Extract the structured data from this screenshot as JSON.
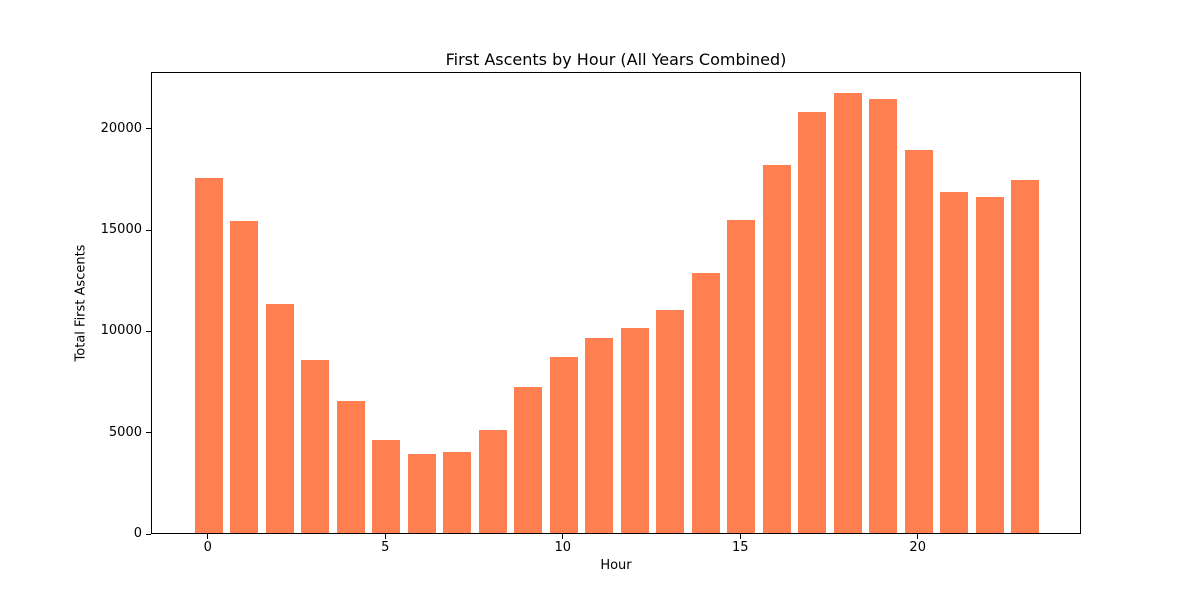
{
  "chart_data": {
    "type": "bar",
    "title": "First Ascents by Hour (All Years Combined)",
    "xlabel": "Hour",
    "ylabel": "Total First Ascents",
    "categories": [
      0,
      1,
      2,
      3,
      4,
      5,
      6,
      7,
      8,
      9,
      10,
      11,
      12,
      13,
      14,
      15,
      16,
      17,
      18,
      19,
      20,
      21,
      22,
      23
    ],
    "values": [
      17500,
      15400,
      11300,
      8550,
      6500,
      4600,
      3900,
      4000,
      5100,
      7200,
      8700,
      9600,
      10100,
      11000,
      12850,
      15450,
      18150,
      20800,
      21700,
      21400,
      18900,
      16850,
      16600,
      17400
    ],
    "x_ticks": [
      0,
      5,
      10,
      15,
      20
    ],
    "y_ticks": [
      0,
      5000,
      10000,
      15000,
      20000
    ],
    "xlim": [
      -1.6,
      24.6
    ],
    "ylim": [
      0,
      22800
    ],
    "grid": false,
    "legend": null,
    "bar_color": "#FF7F50",
    "background_color": "#FFFFFF",
    "axis_color": "#000000"
  }
}
